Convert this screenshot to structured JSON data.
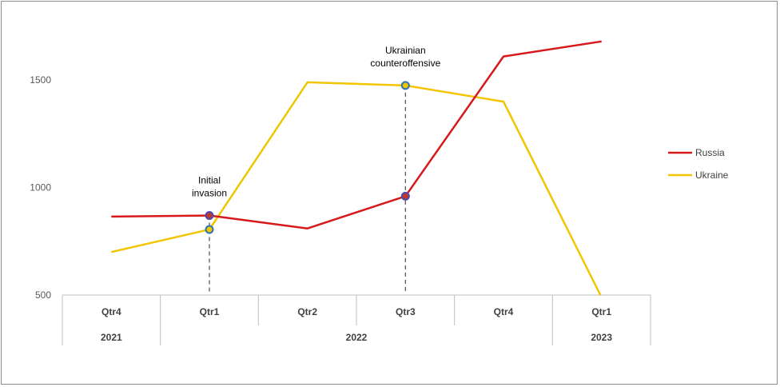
{
  "chart_data": {
    "type": "line",
    "quarters": [
      "Qtr4",
      "Qtr1",
      "Qtr2",
      "Qtr3",
      "Qtr4",
      "Qtr1"
    ],
    "years": [
      {
        "label": "2021",
        "span": 1
      },
      {
        "label": "2022",
        "span": 4
      },
      {
        "label": "2023",
        "span": 1
      }
    ],
    "ylim": [
      500,
      1750
    ],
    "yticks": [
      500,
      1000,
      1500
    ],
    "series": [
      {
        "name": "Russia",
        "color": "#d7191c",
        "values": [
          865,
          870,
          810,
          960,
          1610,
          1680
        ]
      },
      {
        "name": "Ukraine",
        "color": "#f2c500",
        "values": [
          700,
          805,
          1490,
          1475,
          1400,
          490
        ]
      }
    ],
    "annotations": [
      {
        "lines": [
          "Initial",
          "invasion"
        ],
        "index": 1
      },
      {
        "lines": [
          "Ukrainian",
          "counteroffensive"
        ],
        "index": 3
      }
    ],
    "legend_position": "right",
    "grid": false
  }
}
